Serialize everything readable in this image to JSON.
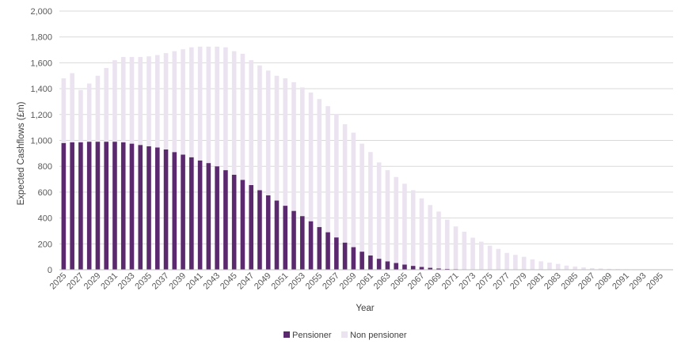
{
  "chart_data": {
    "type": "bar",
    "stacked": true,
    "xlabel": "Year",
    "ylabel": "Expected Cashflows (£m)",
    "ylim": [
      0,
      2000
    ],
    "ytick_step": 200,
    "ytick_labels": [
      "0",
      "200",
      "400",
      "600",
      "800",
      "1,000",
      "1,200",
      "1,400",
      "1,600",
      "1,800",
      "2,000"
    ],
    "grid": true,
    "legend_position": "bottom",
    "categories": [
      2025,
      2026,
      2027,
      2028,
      2029,
      2030,
      2031,
      2032,
      2033,
      2034,
      2035,
      2036,
      2037,
      2038,
      2039,
      2040,
      2041,
      2042,
      2043,
      2044,
      2045,
      2046,
      2047,
      2048,
      2049,
      2050,
      2051,
      2052,
      2053,
      2054,
      2055,
      2056,
      2057,
      2058,
      2059,
      2060,
      2061,
      2062,
      2063,
      2064,
      2065,
      2066,
      2067,
      2068,
      2069,
      2070,
      2071,
      2072,
      2073,
      2074,
      2075,
      2076,
      2077,
      2078,
      2079,
      2080,
      2081,
      2082,
      2083,
      2084,
      2085,
      2086,
      2087,
      2088,
      2089,
      2090,
      2091,
      2092,
      2093,
      2094,
      2095,
      2096
    ],
    "xtick_labels": [
      "2025",
      "2027",
      "2029",
      "2031",
      "2033",
      "2035",
      "2037",
      "2039",
      "2041",
      "2043",
      "2045",
      "2047",
      "2049",
      "2051",
      "2053",
      "2055",
      "2057",
      "2059",
      "2061",
      "2063",
      "2065",
      "2067",
      "2069",
      "2071",
      "2073",
      "2075",
      "2077",
      "2079",
      "2081",
      "2083",
      "2085",
      "2087",
      "2089",
      "2091",
      "2093",
      "2095"
    ],
    "series": [
      {
        "name": "Pensioner",
        "color": "#5b2a6e",
        "values": [
          980,
          985,
          985,
          990,
          990,
          990,
          990,
          985,
          975,
          965,
          955,
          945,
          930,
          910,
          890,
          870,
          845,
          825,
          800,
          770,
          735,
          695,
          655,
          615,
          575,
          535,
          495,
          455,
          415,
          375,
          330,
          290,
          250,
          210,
          175,
          140,
          110,
          85,
          65,
          52,
          40,
          30,
          22,
          15,
          10,
          7,
          5,
          4,
          3,
          2,
          1,
          1,
          0,
          0,
          0,
          0,
          0,
          0,
          0,
          0,
          0,
          0,
          0,
          0,
          0,
          0,
          0,
          0,
          0,
          0,
          0,
          0
        ]
      },
      {
        "name": "Non pensioner",
        "color": "#ece3f1",
        "values": [
          500,
          535,
          405,
          450,
          510,
          570,
          630,
          660,
          670,
          680,
          695,
          715,
          745,
          780,
          815,
          850,
          880,
          900,
          925,
          950,
          955,
          975,
          965,
          965,
          965,
          965,
          985,
          995,
          995,
          995,
          990,
          975,
          955,
          915,
          885,
          835,
          800,
          745,
          705,
          665,
          625,
          585,
          530,
          485,
          440,
          380,
          330,
          290,
          245,
          215,
          185,
          160,
          130,
          115,
          100,
          80,
          65,
          55,
          45,
          32,
          25,
          18,
          13,
          10,
          7,
          5,
          4,
          3,
          2,
          2,
          1,
          1
        ]
      }
    ]
  }
}
